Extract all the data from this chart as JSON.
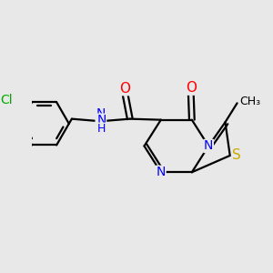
{
  "bg_color": "#e8e8e8",
  "atom_colors": {
    "C": "#000000",
    "N": "#0000ff",
    "O": "#ff0000",
    "S": "#ccaa00",
    "Cl": "#00aa00",
    "H": "#000000"
  },
  "bond_color": "#000000",
  "bond_width": 1.6,
  "font_size": 10
}
